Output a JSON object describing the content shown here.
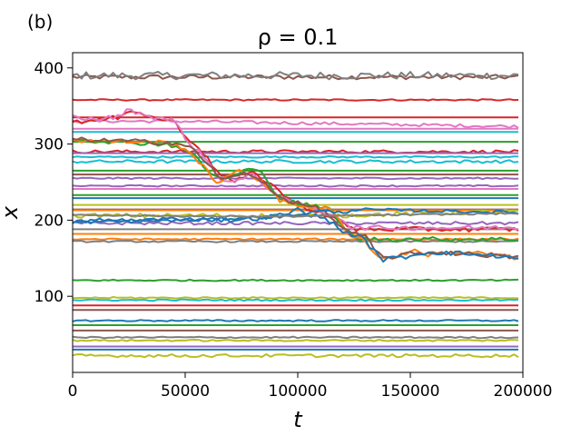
{
  "panel_label": "(b)",
  "chart_data": {
    "type": "line",
    "title": "ρ = 0.1",
    "xlabel": "t",
    "ylabel": "x",
    "xlim": [
      0,
      200000
    ],
    "ylim": [
      0,
      420
    ],
    "xticks": [
      0,
      50000,
      100000,
      150000,
      200000
    ],
    "xtick_labels": [
      "0",
      "50000",
      "100000",
      "150000",
      "200000"
    ],
    "yticks": [
      100,
      200,
      300,
      400
    ],
    "ytick_labels": [
      "100",
      "200",
      "300",
      "400"
    ],
    "grid": false,
    "legend": "none",
    "sample_step": 2000,
    "colors": [
      "#1f77b4",
      "#ff7f0e",
      "#2ca02c",
      "#d62728",
      "#9467bd",
      "#8c564b",
      "#e377c2",
      "#7f7f7f",
      "#bcbd22",
      "#17becf"
    ],
    "series": [
      {
        "color": "#8c564b",
        "segments": [
          [
            0,
            200000,
            388
          ]
        ],
        "noise": 3
      },
      {
        "color": "#7f7f7f",
        "segments": [
          [
            0,
            200000,
            390
          ]
        ],
        "noise": 5
      },
      {
        "color": "#d62728",
        "segments": [
          [
            0,
            200000,
            358
          ]
        ],
        "noise": 1
      },
      {
        "color": "#e377c2",
        "segments": [
          [
            0,
            200000,
            320
          ]
        ],
        "noise": 0
      },
      {
        "color": "#e377c2",
        "segments": [
          [
            0,
            45000,
            330
          ],
          [
            200000,
            323
          ]
        ],
        "noise": 2
      },
      {
        "color": "#d62728",
        "segments": [
          [
            0,
            200000,
            335
          ]
        ],
        "noise": 0
      },
      {
        "color": "#17becf",
        "segments": [
          [
            0,
            200000,
            316
          ]
        ],
        "noise": 0
      },
      {
        "color": "#2ca02c",
        "segments": [
          [
            0,
            200000,
            303
          ]
        ],
        "noise": 0
      },
      {
        "color": "#d62728",
        "segments": [
          [
            0,
            200000,
            290
          ]
        ],
        "noise": 2
      },
      {
        "color": "#9467bd",
        "segments": [
          [
            0,
            200000,
            288
          ]
        ],
        "noise": 0
      },
      {
        "color": "#17becf",
        "segments": [
          [
            0,
            200000,
            283
          ]
        ],
        "noise": 1
      },
      {
        "color": "#17becf",
        "segments": [
          [
            0,
            200000,
            277
          ]
        ],
        "noise": 2
      },
      {
        "color": "#2ca02c",
        "segments": [
          [
            0,
            200000,
            265
          ]
        ],
        "noise": 0
      },
      {
        "color": "#8c564b",
        "segments": [
          [
            0,
            200000,
            260
          ]
        ],
        "noise": 0
      },
      {
        "color": "#9467bd",
        "segments": [
          [
            0,
            200000,
            255
          ]
        ],
        "noise": 1
      },
      {
        "color": "#e377c2",
        "segments": [
          [
            0,
            200000,
            241
          ]
        ],
        "noise": 0
      },
      {
        "color": "#9467bd",
        "segments": [
          [
            0,
            200000,
            245
          ]
        ],
        "noise": 1
      },
      {
        "color": "#2ca02c",
        "segments": [
          [
            0,
            200000,
            233
          ]
        ],
        "noise": 0
      },
      {
        "color": "#1f77b4",
        "segments": [
          [
            0,
            200000,
            229
          ]
        ],
        "noise": 0
      },
      {
        "color": "#bcbd22",
        "segments": [
          [
            0,
            200000,
            220
          ]
        ],
        "noise": 0
      },
      {
        "color": "#8c564b",
        "segments": [
          [
            0,
            200000,
            214
          ]
        ],
        "noise": 0
      },
      {
        "color": "#ff7f0e",
        "segments": [
          [
            0,
            200000,
            213
          ]
        ],
        "noise": 0
      },
      {
        "color": "#bcbd22",
        "segments": [
          [
            0,
            115000,
            206
          ],
          [
            200000,
            212
          ]
        ],
        "noise": 3
      },
      {
        "color": "#9467bd",
        "segments": [
          [
            0,
            200000,
            196
          ]
        ],
        "noise": 2
      },
      {
        "color": "#7f7f7f",
        "segments": [
          [
            0,
            200000,
            188
          ]
        ],
        "noise": 0
      },
      {
        "color": "#ff7f0e",
        "segments": [
          [
            0,
            200000,
            182
          ]
        ],
        "noise": 0
      },
      {
        "color": "#ff7f0e",
        "segments": [
          [
            0,
            200000,
            175
          ]
        ],
        "noise": 1
      },
      {
        "color": "#7f7f7f",
        "segments": [
          [
            0,
            200000,
            172
          ]
        ],
        "noise": 1
      },
      {
        "color": "#2ca02c",
        "segments": [
          [
            0,
            200000,
            121
          ]
        ],
        "noise": 1
      },
      {
        "color": "#bcbd22",
        "segments": [
          [
            0,
            200000,
            98
          ]
        ],
        "noise": 1
      },
      {
        "color": "#17becf",
        "segments": [
          [
            0,
            200000,
            95
          ]
        ],
        "noise": 1
      },
      {
        "color": "#d62728",
        "segments": [
          [
            0,
            200000,
            88
          ]
        ],
        "noise": 0
      },
      {
        "color": "#8c564b",
        "segments": [
          [
            0,
            200000,
            82
          ]
        ],
        "noise": 0
      },
      {
        "color": "#1f77b4",
        "segments": [
          [
            0,
            200000,
            68
          ]
        ],
        "noise": 1
      },
      {
        "color": "#2ca02c",
        "segments": [
          [
            0,
            200000,
            62
          ]
        ],
        "noise": 0
      },
      {
        "color": "#8c564b",
        "segments": [
          [
            0,
            200000,
            55
          ]
        ],
        "noise": 0
      },
      {
        "color": "#7f7f7f",
        "segments": [
          [
            0,
            200000,
            46
          ]
        ],
        "noise": 1
      },
      {
        "color": "#bcbd22",
        "segments": [
          [
            0,
            200000,
            42
          ]
        ],
        "noise": 1
      },
      {
        "color": "#9467bd",
        "segments": [
          [
            0,
            200000,
            34
          ]
        ],
        "noise": 0
      },
      {
        "color": "#1f77b4",
        "segments": [
          [
            0,
            200000,
            30
          ]
        ],
        "noise": 0
      },
      {
        "color": "#bcbd22",
        "segments": [
          [
            0,
            200000,
            22
          ]
        ],
        "noise": 2
      },
      {
        "color": "#d62728",
        "path": [
          [
            0,
            330
          ],
          [
            10000,
            330
          ],
          [
            20000,
            335
          ],
          [
            25000,
            346
          ],
          [
            35000,
            335
          ],
          [
            45000,
            330
          ],
          [
            50000,
            310
          ],
          [
            55000,
            300
          ],
          [
            60000,
            280
          ],
          [
            65000,
            262
          ],
          [
            72000,
            250
          ],
          [
            80000,
            262
          ],
          [
            88000,
            248
          ],
          [
            95000,
            230
          ],
          [
            100000,
            220
          ],
          [
            110000,
            210
          ],
          [
            118000,
            200
          ],
          [
            123000,
            190
          ],
          [
            126000,
            188
          ],
          [
            200000,
            188
          ]
        ],
        "noise": 3
      },
      {
        "color": "#e377c2",
        "path": [
          [
            0,
            336
          ],
          [
            10000,
            332
          ],
          [
            20000,
            336
          ],
          [
            25000,
            345
          ],
          [
            35000,
            336
          ],
          [
            45000,
            331
          ],
          [
            52000,
            300
          ],
          [
            58000,
            285
          ],
          [
            65000,
            255
          ],
          [
            72000,
            250
          ],
          [
            80000,
            260
          ],
          [
            88000,
            240
          ],
          [
            95000,
            225
          ],
          [
            100000,
            220
          ],
          [
            110000,
            212
          ],
          [
            118000,
            205
          ],
          [
            124000,
            190
          ],
          [
            200000,
            190
          ]
        ],
        "noise": 3
      },
      {
        "color": "#2ca02c",
        "path": [
          [
            0,
            306
          ],
          [
            40000,
            300
          ],
          [
            48000,
            296
          ],
          [
            55000,
            282
          ],
          [
            62000,
            258
          ],
          [
            70000,
            255
          ],
          [
            78000,
            268
          ],
          [
            85000,
            260
          ],
          [
            92000,
            228
          ],
          [
            100000,
            222
          ],
          [
            115000,
            214
          ],
          [
            122000,
            182
          ],
          [
            128000,
            175
          ],
          [
            200000,
            175
          ]
        ],
        "noise": 3
      },
      {
        "color": "#ff7f0e",
        "path": [
          [
            0,
            305
          ],
          [
            42000,
            302
          ],
          [
            50000,
            295
          ],
          [
            58000,
            270
          ],
          [
            64000,
            250
          ],
          [
            75000,
            265
          ],
          [
            85000,
            250
          ],
          [
            92000,
            225
          ],
          [
            100000,
            220
          ],
          [
            115000,
            214
          ],
          [
            122000,
            182
          ],
          [
            128000,
            178
          ],
          [
            132000,
            165
          ],
          [
            136000,
            150
          ],
          [
            145000,
            153
          ],
          [
            150000,
            160
          ],
          [
            158000,
            155
          ],
          [
            170000,
            158
          ],
          [
            185000,
            156
          ],
          [
            200000,
            148
          ]
        ],
        "noise": 3
      },
      {
        "color": "#8c564b",
        "path": [
          [
            0,
            306
          ],
          [
            45000,
            302
          ],
          [
            52000,
            296
          ],
          [
            60000,
            275
          ],
          [
            66000,
            252
          ],
          [
            75000,
            262
          ],
          [
            85000,
            250
          ],
          [
            92000,
            230
          ],
          [
            100000,
            222
          ],
          [
            110000,
            215
          ],
          [
            122000,
            185
          ],
          [
            130000,
            178
          ],
          [
            134000,
            162
          ],
          [
            138000,
            150
          ],
          [
            148000,
            155
          ],
          [
            160000,
            158
          ],
          [
            180000,
            155
          ],
          [
            200000,
            150
          ]
        ],
        "noise": 3
      },
      {
        "color": "#1f77b4",
        "path": [
          [
            0,
            198
          ],
          [
            15000,
            200
          ],
          [
            30000,
            200
          ],
          [
            50000,
            202
          ],
          [
            70000,
            200
          ],
          [
            85000,
            203
          ],
          [
            95000,
            208
          ],
          [
            100000,
            214
          ],
          [
            108000,
            205
          ],
          [
            115000,
            198
          ],
          [
            120000,
            185
          ],
          [
            128000,
            178
          ],
          [
            134000,
            160
          ],
          [
            138000,
            148
          ],
          [
            148000,
            152
          ],
          [
            158000,
            158
          ],
          [
            175000,
            156
          ],
          [
            190000,
            153
          ],
          [
            200000,
            148
          ]
        ],
        "noise": 3
      },
      {
        "color": "#1f77b4",
        "path": [
          [
            0,
            197
          ],
          [
            50000,
            200
          ],
          [
            95000,
            205
          ],
          [
            110000,
            212
          ],
          [
            120000,
            210
          ],
          [
            125000,
            214
          ],
          [
            200000,
            210
          ]
        ],
        "noise": 2
      },
      {
        "color": "#7f7f7f",
        "path": [
          [
            0,
            207
          ],
          [
            60000,
            205
          ],
          [
            100000,
            205
          ],
          [
            120000,
            206
          ],
          [
            200000,
            209
          ]
        ],
        "noise": 1
      }
    ]
  }
}
